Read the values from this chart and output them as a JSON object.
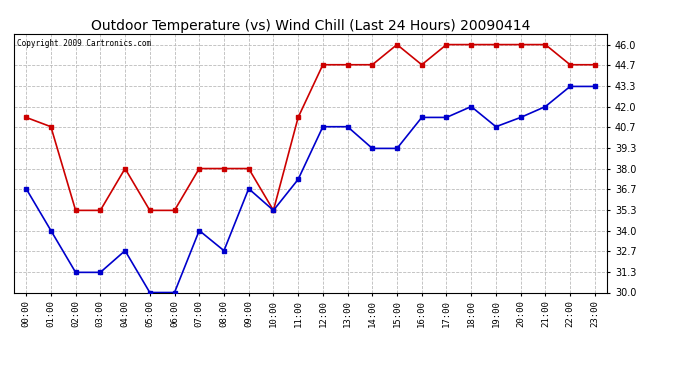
{
  "title": "Outdoor Temperature (vs) Wind Chill (Last 24 Hours) 20090414",
  "copyright": "Copyright 2009 Cartronics.com",
  "hours": [
    "00:00",
    "01:00",
    "02:00",
    "03:00",
    "04:00",
    "05:00",
    "06:00",
    "07:00",
    "08:00",
    "09:00",
    "10:00",
    "11:00",
    "12:00",
    "13:00",
    "14:00",
    "15:00",
    "16:00",
    "17:00",
    "18:00",
    "19:00",
    "20:00",
    "21:00",
    "22:00",
    "23:00"
  ],
  "temp": [
    36.7,
    34.0,
    31.3,
    31.3,
    32.7,
    30.0,
    30.0,
    34.0,
    32.7,
    36.7,
    35.3,
    37.3,
    40.7,
    40.7,
    39.3,
    39.3,
    41.3,
    41.3,
    42.0,
    40.7,
    41.3,
    42.0,
    43.3,
    43.3
  ],
  "windchill": [
    41.3,
    40.7,
    35.3,
    35.3,
    38.0,
    35.3,
    35.3,
    38.0,
    38.0,
    38.0,
    35.3,
    41.3,
    44.7,
    44.7,
    44.7,
    46.0,
    44.7,
    46.0,
    46.0,
    46.0,
    46.0,
    46.0,
    44.7,
    44.7
  ],
  "temp_color": "#0000cc",
  "windchill_color": "#cc0000",
  "ylim": [
    30.0,
    46.7
  ],
  "yticks": [
    30.0,
    31.3,
    32.7,
    34.0,
    35.3,
    36.7,
    38.0,
    39.3,
    40.7,
    42.0,
    43.3,
    44.7,
    46.0
  ],
  "bg_color": "#ffffff",
  "plot_bg_color": "#ffffff",
  "grid_color": "#bbbbbb",
  "title_fontsize": 10,
  "marker": "s",
  "marker_size": 2.5,
  "line_width": 1.2
}
